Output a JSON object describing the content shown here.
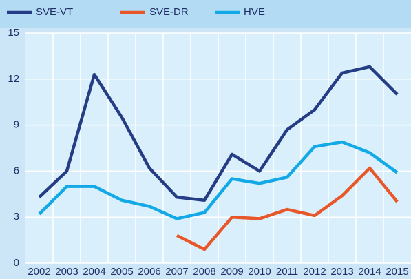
{
  "chart_data": {
    "type": "line",
    "categories": [
      "2002",
      "2003",
      "2004",
      "2005",
      "2006",
      "2007",
      "2008",
      "2009",
      "2010",
      "2011",
      "2012",
      "2013",
      "2014",
      "2015"
    ],
    "series": [
      {
        "name": "SVE-VT",
        "color": "#253d84",
        "values": [
          4.3,
          6.0,
          12.3,
          9.5,
          6.2,
          4.3,
          4.1,
          7.1,
          6.0,
          8.7,
          10.0,
          12.4,
          12.8,
          11.0
        ]
      },
      {
        "name": "SVE-DR",
        "color": "#e8572a",
        "values": [
          null,
          null,
          null,
          null,
          null,
          1.8,
          0.9,
          3.0,
          2.9,
          3.5,
          3.1,
          4.4,
          6.2,
          4.0
        ]
      },
      {
        "name": "HVE",
        "color": "#12a9e6",
        "values": [
          3.2,
          5.0,
          5.0,
          4.1,
          3.7,
          2.9,
          3.3,
          5.5,
          5.2,
          5.6,
          7.6,
          7.9,
          7.2,
          5.9
        ]
      }
    ],
    "ylim": [
      0,
      15
    ],
    "yticks": [
      0,
      3,
      6,
      9,
      12,
      15
    ],
    "grid": true
  }
}
